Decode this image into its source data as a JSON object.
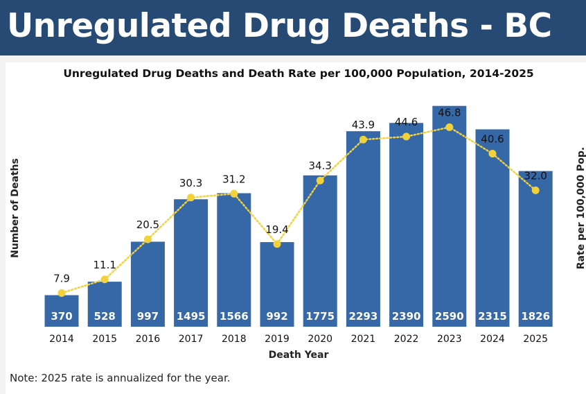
{
  "header": {
    "title": "Unregulated Drug Deaths - BC"
  },
  "note": "Note: 2025 rate is annualized for the year.",
  "colors": {
    "banner": "#264a73",
    "bar": "#3667a6",
    "line": "#f2d23c"
  },
  "chart_data": {
    "type": "bar",
    "title": "Unregulated Drug Deaths and Death Rate per 100,000 Population, 2014-2025",
    "xlabel": "Death Year",
    "ylabel": "Number of Deaths",
    "y2label": "Rate per 100,000 Pop.",
    "categories": [
      "2014",
      "2015",
      "2016",
      "2017",
      "2018",
      "2019",
      "2020",
      "2021",
      "2022",
      "2023",
      "2024",
      "2025"
    ],
    "series": [
      {
        "name": "Number of Deaths",
        "type": "bar",
        "axis": "left",
        "values": [
          370,
          528,
          997,
          1495,
          1566,
          992,
          1775,
          2293,
          2390,
          2590,
          2315,
          1826
        ]
      },
      {
        "name": "Rate per 100,000 Pop.",
        "type": "line",
        "axis": "right",
        "values": [
          7.9,
          11.1,
          20.5,
          30.3,
          31.2,
          19.4,
          34.3,
          43.9,
          44.6,
          46.8,
          40.6,
          32.0
        ],
        "labels": [
          "7.9",
          "11.1",
          "20.5",
          "30.3",
          "31.2",
          "19.4",
          "34.3",
          "43.9",
          "44.6",
          "46.8",
          "40.6",
          "32.0"
        ]
      }
    ],
    "ylim": [
      0,
      2750
    ],
    "y2lim": [
      0,
      55
    ],
    "grid": false,
    "legend": "none"
  }
}
